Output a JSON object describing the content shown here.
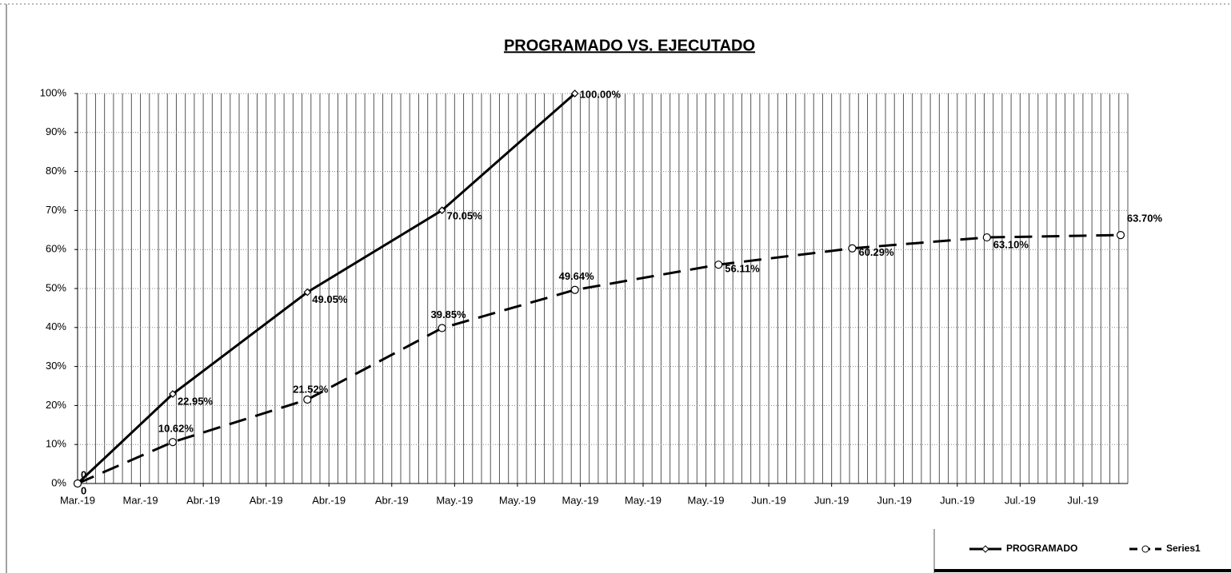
{
  "chart_data": {
    "type": "line",
    "title": "PROGRAMADO VS. EJECUTADO",
    "x": [
      0,
      10.6,
      25.6,
      40.6,
      55.4,
      71.4,
      86.3,
      101.3,
      116.2
    ],
    "xlim": [
      0,
      117
    ],
    "xticks": [
      {
        "value": 0,
        "label": "Mar.-19"
      },
      {
        "value": 7,
        "label": "Mar.-19"
      },
      {
        "value": 14,
        "label": "Abr.-19"
      },
      {
        "value": 21,
        "label": "Abr.-19"
      },
      {
        "value": 28,
        "label": "Abr.-19"
      },
      {
        "value": 35,
        "label": "Abr.-19"
      },
      {
        "value": 42,
        "label": "May.-19"
      },
      {
        "value": 49,
        "label": "May.-19"
      },
      {
        "value": 56,
        "label": "May.-19"
      },
      {
        "value": 63,
        "label": "May.-19"
      },
      {
        "value": 70,
        "label": "May.-19"
      },
      {
        "value": 77,
        "label": "Jun.-19"
      },
      {
        "value": 84,
        "label": "Jun.-19"
      },
      {
        "value": 91,
        "label": "Jun.-19"
      },
      {
        "value": 98,
        "label": "Jun.-19"
      },
      {
        "value": 105,
        "label": "Jul.-19"
      },
      {
        "value": 112,
        "label": "Jul.-19"
      }
    ],
    "x_minor_step": 1,
    "ylim": [
      0,
      100
    ],
    "yticks": [
      {
        "value": 0,
        "label": "0%"
      },
      {
        "value": 10,
        "label": "10%"
      },
      {
        "value": 20,
        "label": "20%"
      },
      {
        "value": 30,
        "label": "30%"
      },
      {
        "value": 40,
        "label": "40%"
      },
      {
        "value": 50,
        "label": "50%"
      },
      {
        "value": 60,
        "label": "60%"
      },
      {
        "value": 70,
        "label": "70%"
      },
      {
        "value": 80,
        "label": "80%"
      },
      {
        "value": 90,
        "label": "90%"
      },
      {
        "value": 100,
        "label": "100%"
      }
    ],
    "legend": "bottom-right",
    "series": [
      {
        "name": "PROGRAMADO",
        "color": "#000000",
        "dash": false,
        "values": [
          0,
          22.95,
          49.05,
          70.05,
          100,
          null,
          null,
          null,
          null
        ],
        "value_labels": [
          "0",
          "22.95%",
          "49.05%",
          "70.05%",
          "100.00%",
          null,
          null,
          null,
          null
        ]
      },
      {
        "name": "Series1",
        "color": "#000000",
        "dash": true,
        "values": [
          0,
          10.62,
          21.52,
          39.85,
          49.64,
          56.11,
          60.29,
          63.1,
          63.7
        ],
        "value_labels": [
          "0",
          "10.62%",
          "21.52%",
          "39.85%",
          "49.64%",
          "56.11%",
          "60.29%",
          "63.10%",
          "63.70%"
        ]
      }
    ]
  }
}
